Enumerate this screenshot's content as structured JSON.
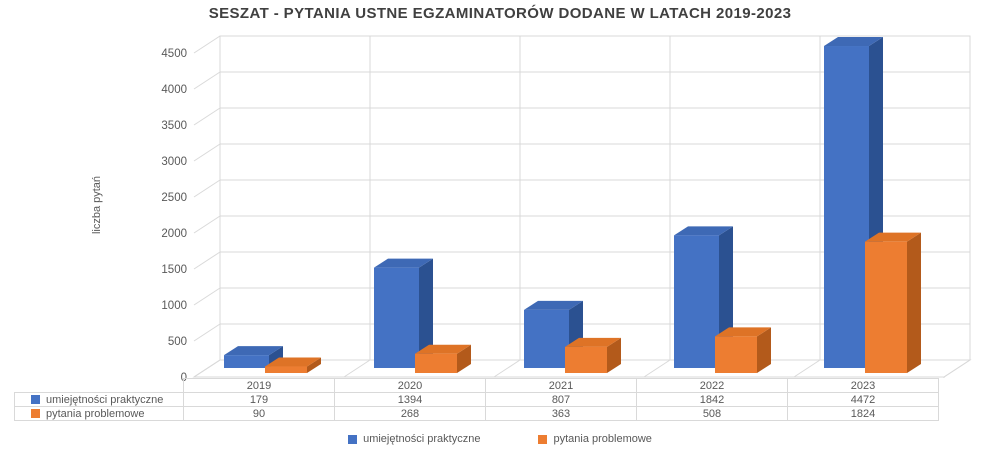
{
  "chart_data": {
    "type": "bar",
    "variant": "3d-clustered-column",
    "title": "SESZAT - PYTANIA USTNE EGZAMINATORÓW DODANE W LATACH 2019-2023",
    "ylabel": "liczba pytań",
    "xlabel": "",
    "categories": [
      "2019",
      "2020",
      "2021",
      "2022",
      "2023"
    ],
    "series": [
      {
        "name": "umiejętności praktyczne",
        "values": [
          179,
          1394,
          807,
          1842,
          4472
        ],
        "color": "#4472C4",
        "color_top": "#3E69B5",
        "color_side": "#2B5191"
      },
      {
        "name": "pytania problemowe",
        "values": [
          90,
          268,
          363,
          508,
          1824
        ],
        "color": "#ED7D31",
        "color_top": "#DE7326",
        "color_side": "#B35A1B"
      }
    ],
    "ylim": [
      0,
      4500
    ],
    "ytick_step": 500,
    "grid": true,
    "legend_position": "bottom",
    "data_table_shown": true
  },
  "colors": {
    "grid": "#D9D9D9",
    "axis_text": "#595959",
    "title_text": "#404040",
    "background": "#FFFFFF"
  }
}
